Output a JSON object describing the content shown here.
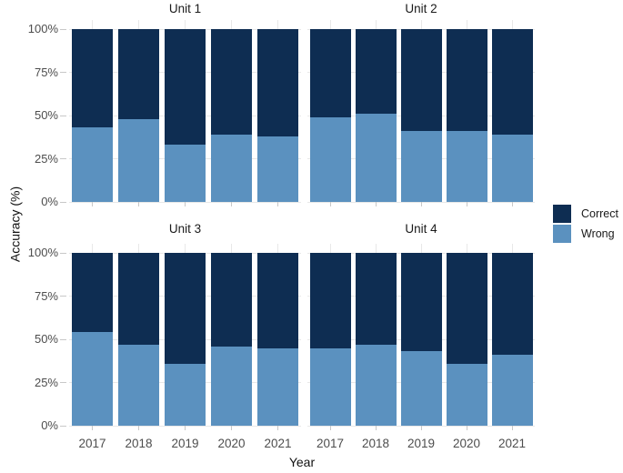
{
  "chart_data": {
    "type": "bar",
    "stacked": true,
    "percent": true,
    "xlabel": "Year",
    "ylabel": "Accuracy (%)",
    "categories": [
      "2017",
      "2018",
      "2019",
      "2020",
      "2021"
    ],
    "y_ticks": [
      0,
      25,
      50,
      75,
      100
    ],
    "y_tick_labels": [
      "0%",
      "25%",
      "50%",
      "75%",
      "100%"
    ],
    "ylim": [
      0,
      100
    ],
    "grid": true,
    "legend_position": "right",
    "series_colors": {
      "Correct": "#0e2d52",
      "Wrong": "#5b91bf"
    },
    "legend": [
      {
        "name": "Correct",
        "color": "#0e2d52"
      },
      {
        "name": "Wrong",
        "color": "#5b91bf"
      }
    ],
    "facets": [
      {
        "title": "Unit 1",
        "series": [
          {
            "name": "Correct",
            "values": [
              57,
              52,
              67,
              61,
              62
            ]
          },
          {
            "name": "Wrong",
            "values": [
              43,
              48,
              33,
              39,
              38
            ]
          }
        ]
      },
      {
        "title": "Unit 2",
        "series": [
          {
            "name": "Correct",
            "values": [
              51,
              49,
              59,
              59,
              61
            ]
          },
          {
            "name": "Wrong",
            "values": [
              49,
              51,
              41,
              41,
              39
            ]
          }
        ]
      },
      {
        "title": "Unit 3",
        "series": [
          {
            "name": "Correct",
            "values": [
              46,
              53,
              64,
              54,
              55
            ]
          },
          {
            "name": "Wrong",
            "values": [
              54,
              47,
              36,
              46,
              45
            ]
          }
        ]
      },
      {
        "title": "Unit 4",
        "series": [
          {
            "name": "Correct",
            "values": [
              55,
              53,
              57,
              64,
              59
            ]
          },
          {
            "name": "Wrong",
            "values": [
              45,
              47,
              43,
              36,
              41
            ]
          }
        ]
      }
    ],
    "style_colors": {
      "background": "#ffffff",
      "gridline": "#e8e8e8",
      "tick": "#c8c8c8",
      "tick_label": "#4d4d4d"
    }
  }
}
